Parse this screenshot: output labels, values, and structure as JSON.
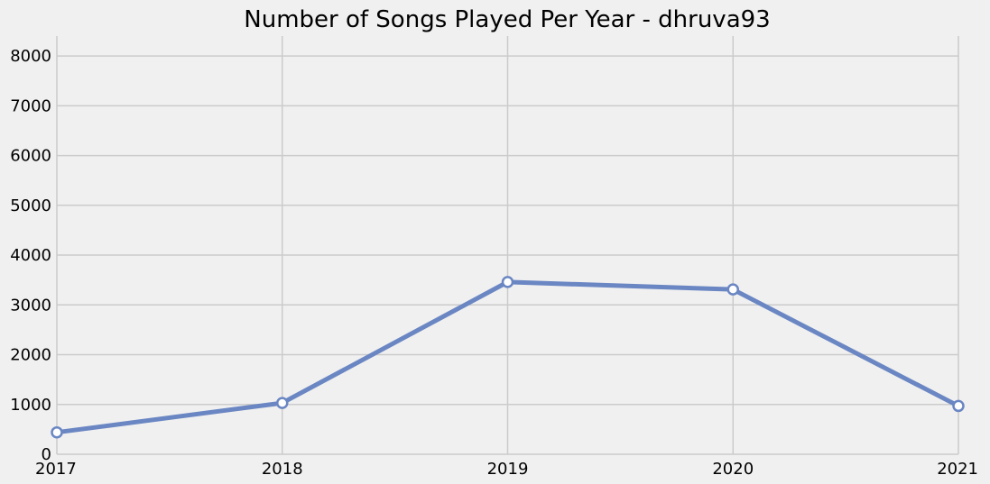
{
  "chart_data": {
    "type": "line",
    "title": "Number of Songs Played Per Year - dhruva93",
    "xlabel": "",
    "ylabel": "",
    "x": [
      2017,
      2018,
      2019,
      2020,
      2021
    ],
    "x_tick_labels": [
      "2017",
      "2018",
      "2019",
      "2020",
      "2021"
    ],
    "xlim": [
      2017,
      2021
    ],
    "y_ticks": [
      0,
      1000,
      2000,
      3000,
      4000,
      5000,
      6000,
      7000,
      8000
    ],
    "y_tick_labels": [
      "0",
      "1000",
      "2000",
      "3000",
      "4000",
      "5000",
      "6000",
      "7000",
      "8000"
    ],
    "ylim": [
      0,
      8400
    ],
    "grid": true,
    "legend": "none",
    "series": [
      {
        "values": [
          440,
          1030,
          3460,
          3310,
          970
        ],
        "color": "#6a86c3",
        "marker": "circle",
        "marker_fill": "#ffffff"
      }
    ],
    "background_color": "#f0f0f0",
    "grid_color": "#cbcbcb"
  }
}
